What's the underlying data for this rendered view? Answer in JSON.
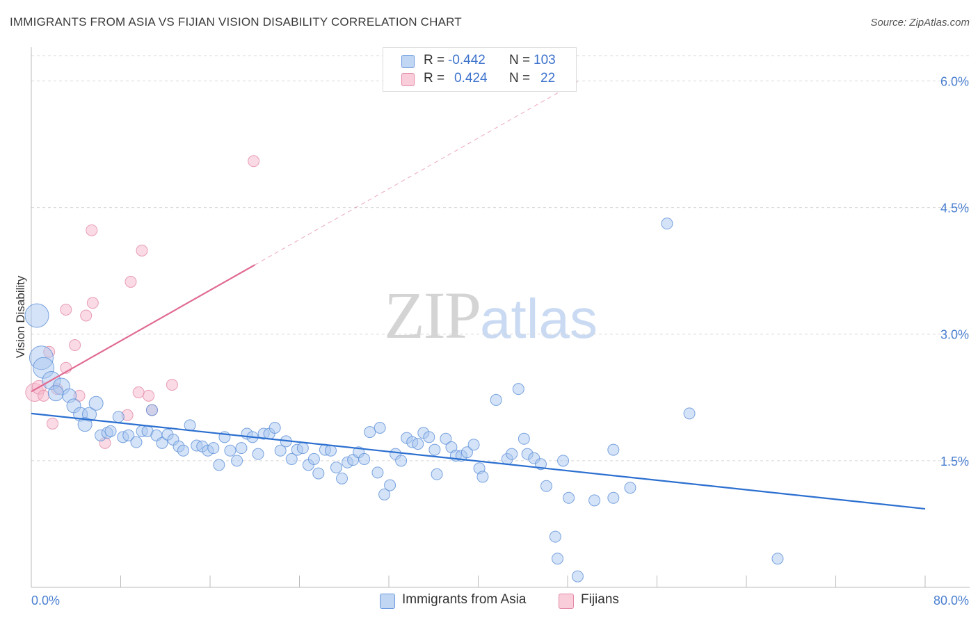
{
  "header": {
    "title": "IMMIGRANTS FROM ASIA VS FIJIAN VISION DISABILITY CORRELATION CHART",
    "source": "Source: ZipAtlas.com"
  },
  "watermark": {
    "zip": "ZIP",
    "atlas": "atlas"
  },
  "legend": {
    "rows": [
      {
        "r_label": "R =",
        "r_value": "-0.442",
        "n_label": "N =",
        "n_value": "103"
      },
      {
        "r_label": "R =",
        "r_value": "0.424",
        "n_label": "N =",
        "n_value": "22"
      }
    ]
  },
  "bottom_legend": {
    "asia": "Immigrants from Asia",
    "fijians": "Fijians"
  },
  "colors": {
    "asia_fill": "#a9c8ef",
    "asia_stroke": "#5b8fd8",
    "asia_line": "#2b6fd0",
    "fiji_fill": "#f6bccd",
    "fiji_stroke": "#e38aa6",
    "fiji_line": "#e06a92",
    "tick_text": "#4a7fd0",
    "grid": "#d8d8d8"
  },
  "chart_data": {
    "type": "scatter",
    "title": "IMMIGRANTS FROM ASIA VS FIJIAN VISION DISABILITY CORRELATION CHART",
    "xlabel": "",
    "ylabel": "Vision Disability",
    "xlim": [
      0,
      80
    ],
    "ylim": [
      0,
      6.3
    ],
    "x_tick_labels": [
      "0.0%",
      "80.0%"
    ],
    "y_ticks": [
      1.5,
      3.0,
      4.5,
      6.0
    ],
    "y_tick_labels": [
      "1.5%",
      "3.0%",
      "4.5%",
      "6.0%"
    ],
    "grid": "horizontal dashed",
    "series": [
      {
        "name": "Immigrants from Asia",
        "r": -0.442,
        "n": 103,
        "trend": {
          "x": [
            0,
            80
          ],
          "y": [
            2.06,
            0.93
          ]
        },
        "points": [
          [
            0.5,
            3.22,
            18
          ],
          [
            0.9,
            2.72,
            18
          ],
          [
            1.1,
            2.6,
            16
          ],
          [
            1.8,
            2.45,
            14
          ],
          [
            2.7,
            2.38,
            13
          ],
          [
            2.2,
            2.3,
            12
          ],
          [
            3.4,
            2.27,
            11
          ],
          [
            3.8,
            2.15,
            11
          ],
          [
            4.4,
            2.05,
            11
          ],
          [
            5.2,
            2.05,
            11
          ],
          [
            4.8,
            1.93,
            11
          ],
          [
            5.8,
            2.18,
            11
          ],
          [
            6.2,
            1.8,
            9
          ],
          [
            6.8,
            1.83,
            9
          ],
          [
            7.1,
            1.85,
            9
          ],
          [
            7.8,
            2.02,
            9
          ],
          [
            8.2,
            1.78,
            9
          ],
          [
            8.7,
            1.8,
            9
          ],
          [
            9.4,
            1.72,
            9
          ],
          [
            9.9,
            1.85,
            9
          ],
          [
            10.4,
            1.85,
            9
          ],
          [
            10.8,
            2.1,
            9
          ],
          [
            11.2,
            1.8,
            9
          ],
          [
            11.7,
            1.71,
            9
          ],
          [
            12.2,
            1.81,
            9
          ],
          [
            12.7,
            1.75,
            9
          ],
          [
            13.2,
            1.67,
            9
          ],
          [
            13.6,
            1.62,
            9
          ],
          [
            14.2,
            1.92,
            9
          ],
          [
            14.8,
            1.68,
            9
          ],
          [
            15.3,
            1.67,
            9
          ],
          [
            15.8,
            1.62,
            9
          ],
          [
            16.3,
            1.65,
            9
          ],
          [
            16.8,
            1.45,
            9
          ],
          [
            17.3,
            1.78,
            9
          ],
          [
            17.8,
            1.62,
            9
          ],
          [
            18.4,
            1.5,
            9
          ],
          [
            18.8,
            1.65,
            9
          ],
          [
            19.3,
            1.82,
            9
          ],
          [
            19.8,
            1.78,
            9
          ],
          [
            20.3,
            1.58,
            9
          ],
          [
            20.8,
            1.82,
            9
          ],
          [
            21.3,
            1.82,
            9
          ],
          [
            21.8,
            1.89,
            9
          ],
          [
            22.3,
            1.62,
            9
          ],
          [
            22.8,
            1.73,
            9
          ],
          [
            23.3,
            1.52,
            9
          ],
          [
            23.8,
            1.63,
            9
          ],
          [
            24.3,
            1.65,
            9
          ],
          [
            24.8,
            1.45,
            9
          ],
          [
            25.3,
            1.52,
            9
          ],
          [
            25.7,
            1.35,
            9
          ],
          [
            26.3,
            1.63,
            9
          ],
          [
            26.8,
            1.62,
            9
          ],
          [
            27.3,
            1.42,
            9
          ],
          [
            27.8,
            1.29,
            9
          ],
          [
            28.3,
            1.48,
            9
          ],
          [
            28.8,
            1.51,
            9
          ],
          [
            29.3,
            1.6,
            9
          ],
          [
            29.8,
            1.52,
            9
          ],
          [
            30.3,
            1.84,
            9
          ],
          [
            31.2,
            1.89,
            9
          ],
          [
            31.0,
            1.36,
            9
          ],
          [
            31.6,
            1.1,
            9
          ],
          [
            32.1,
            1.21,
            9
          ],
          [
            32.6,
            1.58,
            9
          ],
          [
            33.1,
            1.5,
            9
          ],
          [
            33.6,
            1.77,
            9
          ],
          [
            34.1,
            1.72,
            9
          ],
          [
            34.6,
            1.7,
            9
          ],
          [
            35.1,
            1.83,
            9
          ],
          [
            35.6,
            1.78,
            9
          ],
          [
            36.1,
            1.63,
            9
          ],
          [
            36.3,
            1.34,
            9
          ],
          [
            37.1,
            1.76,
            9
          ],
          [
            37.6,
            1.66,
            9
          ],
          [
            38.0,
            1.56,
            9
          ],
          [
            38.5,
            1.56,
            9
          ],
          [
            39.0,
            1.6,
            9
          ],
          [
            39.6,
            1.69,
            9
          ],
          [
            40.1,
            1.41,
            9
          ],
          [
            40.4,
            1.31,
            9
          ],
          [
            41.6,
            2.22,
            9
          ],
          [
            42.6,
            1.52,
            9
          ],
          [
            43.0,
            1.58,
            9
          ],
          [
            43.6,
            2.35,
            9
          ],
          [
            44.1,
            1.76,
            9
          ],
          [
            44.4,
            1.58,
            9
          ],
          [
            45.0,
            1.53,
            9
          ],
          [
            45.6,
            1.46,
            9
          ],
          [
            46.1,
            1.2,
            9
          ],
          [
            46.9,
            0.6,
            9
          ],
          [
            47.1,
            0.34,
            9
          ],
          [
            47.6,
            1.5,
            9
          ],
          [
            48.1,
            1.06,
            9
          ],
          [
            48.9,
            0.13,
            9
          ],
          [
            50.4,
            1.03,
            9
          ],
          [
            52.1,
            1.06,
            9
          ],
          [
            52.1,
            1.63,
            9
          ],
          [
            53.6,
            1.18,
            9
          ],
          [
            56.9,
            4.31,
            9
          ],
          [
            58.9,
            2.06,
            9
          ],
          [
            66.8,
            0.34,
            9
          ]
        ]
      },
      {
        "name": "Fijians",
        "r": 0.424,
        "n": 22,
        "trend": {
          "x": [
            0,
            20
          ],
          "y": [
            2.32,
            3.82
          ]
        },
        "trend_extension": {
          "x": [
            20,
            49
          ],
          "y": [
            3.82,
            6.0
          ]
        },
        "points": [
          [
            0.3,
            2.31,
            14
          ],
          [
            0.7,
            2.37,
            11
          ],
          [
            1.1,
            2.27,
            9
          ],
          [
            1.6,
            2.79,
            9
          ],
          [
            1.9,
            1.94,
            9
          ],
          [
            2.3,
            2.35,
            9
          ],
          [
            3.1,
            3.29,
            9
          ],
          [
            3.1,
            2.6,
            9
          ],
          [
            3.9,
            2.87,
            9
          ],
          [
            4.3,
            2.27,
            9
          ],
          [
            4.9,
            3.22,
            9
          ],
          [
            5.4,
            4.23,
            9
          ],
          [
            5.5,
            3.37,
            9
          ],
          [
            6.6,
            1.71,
            9
          ],
          [
            8.6,
            2.04,
            9
          ],
          [
            8.9,
            3.62,
            9
          ],
          [
            9.6,
            2.31,
            9
          ],
          [
            9.9,
            3.99,
            9
          ],
          [
            10.5,
            2.27,
            9
          ],
          [
            10.8,
            2.1,
            9
          ],
          [
            12.6,
            2.4,
            9
          ],
          [
            19.9,
            5.05,
            9
          ]
        ]
      }
    ]
  }
}
